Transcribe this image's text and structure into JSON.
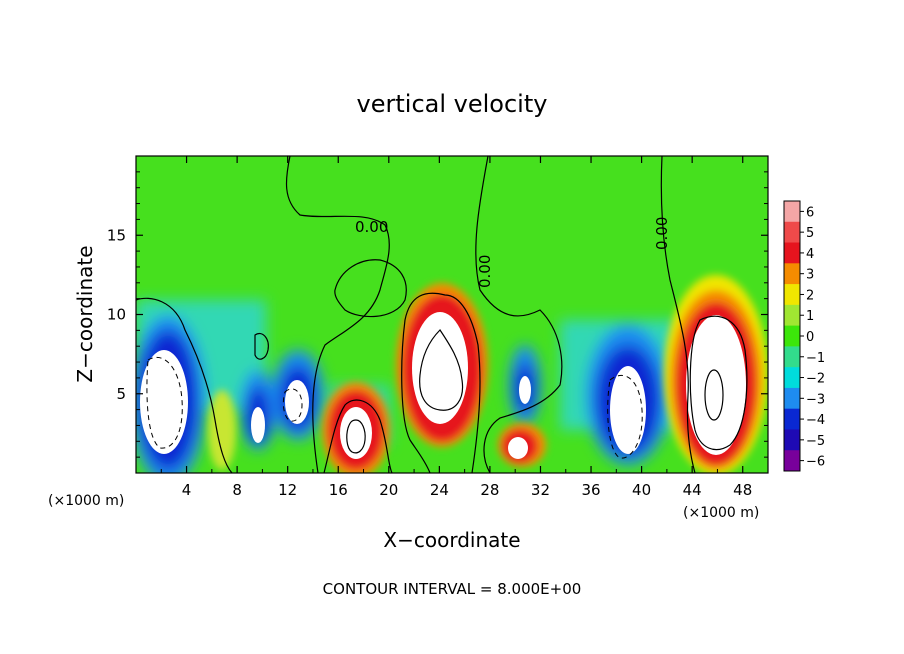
{
  "chart_data": {
    "type": "heatmap",
    "title": "vertical velocity",
    "xlabel": "X−coordinate",
    "ylabel": "Z−coordinate",
    "x_unit_left": "(×1000 m)",
    "x_unit_right": "(×1000 m)",
    "xlim": [
      0,
      50
    ],
    "ylim": [
      0,
      20
    ],
    "x_ticks": [
      4,
      8,
      12,
      16,
      20,
      24,
      28,
      32,
      36,
      40,
      44,
      48
    ],
    "y_ticks": [
      5,
      10,
      15
    ],
    "colorbar": {
      "ticks": [
        6,
        5,
        4,
        3,
        2,
        1,
        0,
        -1,
        -2,
        -3,
        -4,
        -5,
        -6
      ],
      "labels": [
        "6",
        "5",
        "4",
        "3",
        "2",
        "1",
        "0",
        "−1",
        "−2",
        "−3",
        "−4",
        "−5",
        "−6"
      ],
      "colors": [
        "#f4a6a6",
        "#ef4a4a",
        "#e6141e",
        "#f58c00",
        "#f0e600",
        "#a0e632",
        "#3ce60a",
        "#32dc8c",
        "#00dcdc",
        "#1e8cf0",
        "#0a28d2",
        "#1e0ab4",
        "#78009b"
      ]
    },
    "contour_labels": [
      "0.00",
      "0.00",
      "0.00"
    ],
    "footer": "CONTOUR INTERVAL = 8.000E+00",
    "features": [
      {
        "x": 2.5,
        "z": 5.0,
        "w": -14
      },
      {
        "x": 6.5,
        "z": 2.0,
        "w": 3
      },
      {
        "x": 9.8,
        "z": 3.5,
        "w": -8
      },
      {
        "x": 12.5,
        "z": 4.5,
        "w": -10
      },
      {
        "x": 17.5,
        "z": 2.5,
        "w": 12
      },
      {
        "x": 24.5,
        "z": 6.5,
        "w": 14
      },
      {
        "x": 30.0,
        "z": 1.8,
        "w": 7
      },
      {
        "x": 30.5,
        "z": 5.5,
        "w": -5
      },
      {
        "x": 38.5,
        "z": 4.5,
        "w": -12
      },
      {
        "x": 45.5,
        "z": 5.5,
        "w": 22
      }
    ]
  }
}
